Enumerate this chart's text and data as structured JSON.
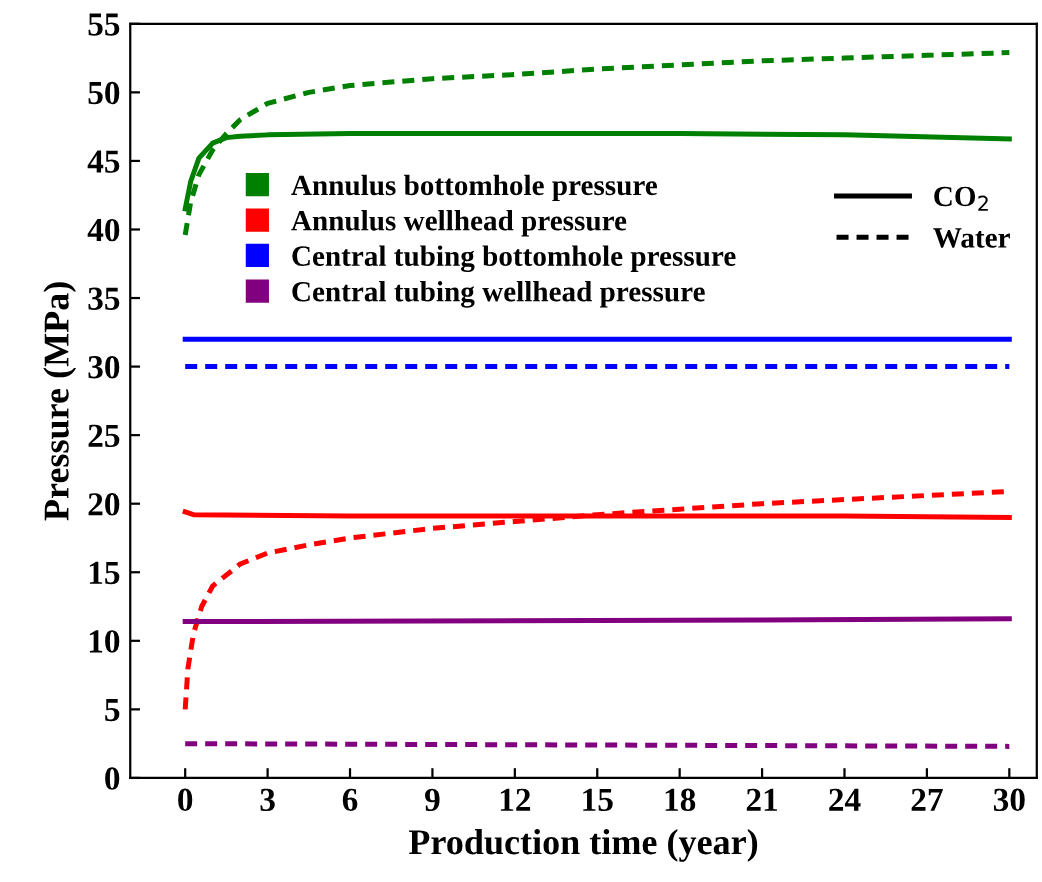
{
  "chart_data": {
    "type": "line",
    "xlabel": "Production time (year)",
    "ylabel": "Pressure (MPa)",
    "xlim": [
      -2,
      31
    ],
    "xticks": [
      0,
      3,
      6,
      9,
      12,
      15,
      18,
      21,
      24,
      27,
      30
    ],
    "ylim": [
      0,
      55
    ],
    "yticks": [
      0,
      5,
      10,
      15,
      20,
      25,
      30,
      35,
      40,
      45,
      50,
      55
    ],
    "grid": false,
    "legend": "top left",
    "marker": "none",
    "annotations": [
      "CO$_{2}$",
      "Water"
    ],
    "series": [
      {
        "name": "Annulus bottomhole pressure",
        "color": "#008000",
        "line_style": "solid",
        "x": [
          0,
          0.2,
          0.5,
          1,
          1.5,
          2,
          3,
          6,
          12,
          18,
          24,
          30
        ],
        "values": [
          41.5,
          43.5,
          45.2,
          46.3,
          46.7,
          46.8,
          46.9,
          47.0,
          47.0,
          47.0,
          46.9,
          46.6
        ]
      },
      {
        "name": null,
        "color": "#008000",
        "line_style": "dashed",
        "x": [
          0,
          0.2,
          0.5,
          1,
          1.5,
          2,
          3,
          4.5,
          6,
          9,
          12,
          15,
          18,
          21,
          24,
          27,
          30
        ],
        "values": [
          39.6,
          42.0,
          44.0,
          45.8,
          47.0,
          48.0,
          49.2,
          50.0,
          50.5,
          51.0,
          51.3,
          51.7,
          52.0,
          52.3,
          52.5,
          52.7,
          52.9
        ]
      },
      {
        "name": "Annulus wellhead pressure",
        "color": "#ff0000",
        "line_style": "solid",
        "x": [
          0,
          0.3,
          6,
          12,
          18,
          24,
          30
        ],
        "values": [
          19.4,
          19.2,
          19.1,
          19.1,
          19.1,
          19.1,
          19.0
        ]
      },
      {
        "name": null,
        "color": "#ff0000",
        "line_style": "dashed",
        "x": [
          0,
          0.1,
          0.3,
          0.6,
          1,
          2,
          3,
          4.5,
          6,
          9,
          12,
          15,
          18,
          21,
          24,
          27,
          30
        ],
        "values": [
          5.0,
          8.0,
          10.5,
          12.5,
          14.0,
          15.6,
          16.4,
          17.0,
          17.5,
          18.2,
          18.7,
          19.2,
          19.6,
          20.0,
          20.3,
          20.6,
          20.9
        ]
      },
      {
        "name": "Central tubing bottomhole pressure",
        "color": "#0000ff",
        "line_style": "solid",
        "x": [
          0,
          30
        ],
        "values": [
          32.0,
          32.0
        ]
      },
      {
        "name": null,
        "color": "#0000ff",
        "line_style": "dashed",
        "x": [
          0,
          30
        ],
        "values": [
          30.0,
          30.0
        ]
      },
      {
        "name": "Central tubing wellhead pressure",
        "color": "#800080",
        "line_style": "solid",
        "x": [
          0,
          18,
          30
        ],
        "values": [
          11.4,
          11.5,
          11.6
        ]
      },
      {
        "name": null,
        "color": "#800080",
        "line_style": "dashed",
        "x": [
          0,
          15,
          30
        ],
        "values": [
          2.5,
          2.4,
          2.3
        ]
      }
    ]
  }
}
